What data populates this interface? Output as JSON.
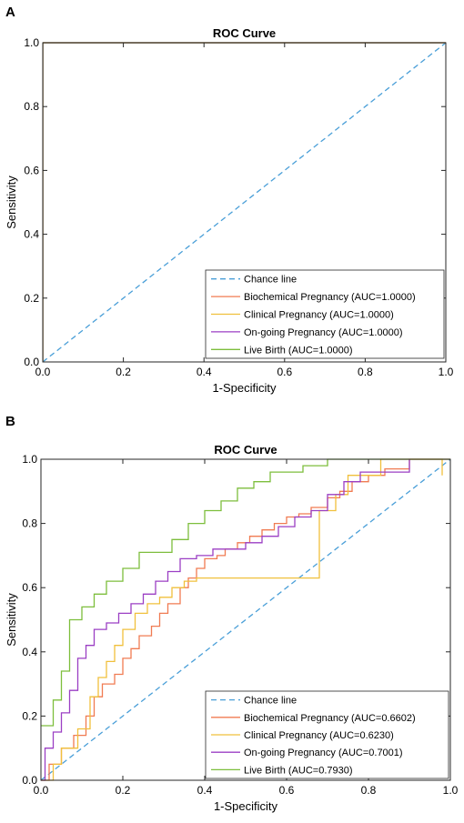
{
  "chart_data": [
    {
      "panel": "A",
      "type": "line",
      "title": "ROC Curve",
      "xlabel": "1-Specificity",
      "ylabel": "Sensitivity",
      "xlim": [
        0,
        1
      ],
      "ylim": [
        0,
        1
      ],
      "xticks": [
        "0.0",
        "0.2",
        "0.4",
        "0.6",
        "0.8",
        "1.0"
      ],
      "yticks": [
        "0.0",
        "0.2",
        "0.4",
        "0.6",
        "0.8",
        "1.0"
      ],
      "grid": false,
      "legend_position": "bottom-right",
      "series": [
        {
          "name": "Chance line",
          "color": "#4a9fd8",
          "dashed": true,
          "x": [
            0,
            1
          ],
          "y": [
            0,
            1
          ]
        },
        {
          "name": "Biochemical Pregnancy (AUC=1.0000)",
          "color": "#f07b52",
          "x": [
            0,
            0,
            1
          ],
          "y": [
            0,
            1,
            1
          ]
        },
        {
          "name": "Clinical Pregnancy (AUC=1.0000)",
          "color": "#f0c03c",
          "x": [
            0,
            0,
            1
          ],
          "y": [
            0,
            1,
            1
          ]
        },
        {
          "name": "On-going Pregnancy (AUC=1.0000)",
          "color": "#9b3fc4",
          "x": [
            0,
            0,
            1
          ],
          "y": [
            0,
            1,
            1
          ]
        },
        {
          "name": "Live Birth (AUC=1.0000)",
          "color": "#7dbe3c",
          "x": [
            0,
            0,
            1
          ],
          "y": [
            0,
            1,
            1
          ]
        }
      ]
    },
    {
      "panel": "B",
      "type": "line",
      "title": "ROC Curve",
      "xlabel": "1-Specificity",
      "ylabel": "Sensitivity",
      "xlim": [
        0,
        1
      ],
      "ylim": [
        0,
        1
      ],
      "xticks": [
        "0.0",
        "0.2",
        "0.4",
        "0.6",
        "0.8",
        "1.0"
      ],
      "yticks": [
        "0.0",
        "0.2",
        "0.4",
        "0.6",
        "0.8",
        "1.0"
      ],
      "grid": false,
      "legend_position": "bottom-right",
      "series": [
        {
          "name": "Chance line",
          "color": "#4a9fd8",
          "dashed": true,
          "x": [
            0,
            1
          ],
          "y": [
            0,
            1
          ]
        },
        {
          "name": "Biochemical Pregnancy (AUC=0.6602)",
          "color": "#f07b52",
          "x": [
            0,
            0.02,
            0.02,
            0.05,
            0.05,
            0.08,
            0.08,
            0.11,
            0.11,
            0.13,
            0.13,
            0.15,
            0.15,
            0.18,
            0.18,
            0.2,
            0.2,
            0.22,
            0.22,
            0.24,
            0.24,
            0.27,
            0.27,
            0.29,
            0.29,
            0.31,
            0.31,
            0.34,
            0.34,
            0.36,
            0.36,
            0.38,
            0.38,
            0.4,
            0.4,
            0.43,
            0.43,
            0.45,
            0.45,
            0.48,
            0.48,
            0.51,
            0.51,
            0.54,
            0.54,
            0.57,
            0.57,
            0.6,
            0.6,
            0.63,
            0.63,
            0.66,
            0.66,
            0.7,
            0.7,
            0.73,
            0.73,
            0.76,
            0.76,
            0.8,
            0.8,
            0.84,
            0.84,
            0.9,
            0.9,
            1.0
          ],
          "y": [
            0,
            0,
            0.05,
            0.05,
            0.1,
            0.1,
            0.14,
            0.14,
            0.2,
            0.2,
            0.26,
            0.26,
            0.3,
            0.3,
            0.33,
            0.33,
            0.38,
            0.38,
            0.41,
            0.41,
            0.45,
            0.45,
            0.48,
            0.48,
            0.52,
            0.52,
            0.55,
            0.55,
            0.6,
            0.6,
            0.63,
            0.63,
            0.66,
            0.66,
            0.69,
            0.69,
            0.7,
            0.7,
            0.72,
            0.72,
            0.74,
            0.74,
            0.76,
            0.76,
            0.78,
            0.78,
            0.8,
            0.8,
            0.82,
            0.82,
            0.83,
            0.83,
            0.85,
            0.85,
            0.88,
            0.88,
            0.9,
            0.9,
            0.93,
            0.93,
            0.95,
            0.95,
            0.97,
            0.97,
            1.0,
            1.0
          ]
        },
        {
          "name": "Clinical Pregnancy (AUC=0.6230)",
          "color": "#f0c03c",
          "x": [
            0,
            0.03,
            0.03,
            0.05,
            0.05,
            0.09,
            0.09,
            0.12,
            0.12,
            0.14,
            0.14,
            0.16,
            0.16,
            0.18,
            0.18,
            0.2,
            0.2,
            0.23,
            0.23,
            0.26,
            0.26,
            0.29,
            0.29,
            0.32,
            0.32,
            0.35,
            0.35,
            0.38,
            0.38,
            0.42,
            0.42,
            0.68,
            0.68,
            0.72,
            0.72,
            0.75,
            0.75,
            0.79,
            0.79,
            0.83,
            0.83,
            0.86,
            0.86,
            0.98,
            0.98
          ],
          "y": [
            0,
            0,
            0.05,
            0.05,
            0.1,
            0.1,
            0.16,
            0.16,
            0.26,
            0.26,
            0.32,
            0.32,
            0.37,
            0.37,
            0.42,
            0.42,
            0.47,
            0.47,
            0.52,
            0.52,
            0.55,
            0.55,
            0.57,
            0.57,
            0.6,
            0.6,
            0.62,
            0.62,
            0.63,
            0.63,
            0.63,
            0.63,
            0.84,
            0.84,
            0.89,
            0.89,
            0.95,
            0.95,
            0.95,
            0.95,
            1.0,
            1.0,
            1.0,
            1.0,
            0.95
          ]
        },
        {
          "name": "On-going Pregnancy (AUC=0.7001)",
          "color": "#9b3fc4",
          "x": [
            0,
            0.01,
            0.01,
            0.03,
            0.03,
            0.05,
            0.05,
            0.07,
            0.07,
            0.09,
            0.09,
            0.11,
            0.11,
            0.13,
            0.13,
            0.16,
            0.16,
            0.19,
            0.19,
            0.22,
            0.22,
            0.25,
            0.25,
            0.28,
            0.28,
            0.31,
            0.31,
            0.34,
            0.34,
            0.38,
            0.38,
            0.42,
            0.42,
            0.46,
            0.46,
            0.5,
            0.5,
            0.54,
            0.54,
            0.58,
            0.58,
            0.62,
            0.62,
            0.66,
            0.66,
            0.7,
            0.7,
            0.74,
            0.74,
            0.78,
            0.78,
            0.9,
            0.9
          ],
          "y": [
            0,
            0,
            0.1,
            0.1,
            0.15,
            0.15,
            0.21,
            0.21,
            0.28,
            0.28,
            0.38,
            0.38,
            0.42,
            0.42,
            0.47,
            0.47,
            0.49,
            0.49,
            0.52,
            0.52,
            0.55,
            0.55,
            0.58,
            0.58,
            0.62,
            0.62,
            0.65,
            0.65,
            0.69,
            0.69,
            0.7,
            0.7,
            0.72,
            0.72,
            0.72,
            0.72,
            0.74,
            0.74,
            0.76,
            0.76,
            0.79,
            0.79,
            0.82,
            0.82,
            0.84,
            0.84,
            0.89,
            0.89,
            0.93,
            0.93,
            0.96,
            0.96,
            1.0
          ]
        },
        {
          "name": "Live Birth (AUC=0.7930)",
          "color": "#7dbe3c",
          "x": [
            0,
            0.03,
            0.03,
            0.05,
            0.05,
            0.07,
            0.07,
            0.1,
            0.1,
            0.13,
            0.13,
            0.16,
            0.16,
            0.2,
            0.2,
            0.24,
            0.24,
            0.28,
            0.28,
            0.32,
            0.32,
            0.36,
            0.36,
            0.4,
            0.4,
            0.44,
            0.44,
            0.48,
            0.48,
            0.52,
            0.52,
            0.56,
            0.56,
            0.6,
            0.6,
            0.64,
            0.64,
            0.7,
            0.7,
            0.75,
            0.75,
            1.0
          ],
          "y": [
            0.17,
            0.17,
            0.25,
            0.25,
            0.34,
            0.34,
            0.5,
            0.5,
            0.54,
            0.54,
            0.58,
            0.58,
            0.62,
            0.62,
            0.66,
            0.66,
            0.71,
            0.71,
            0.71,
            0.71,
            0.75,
            0.75,
            0.8,
            0.8,
            0.84,
            0.84,
            0.87,
            0.87,
            0.91,
            0.91,
            0.93,
            0.93,
            0.96,
            0.96,
            0.96,
            0.96,
            0.98,
            0.98,
            1.0,
            1.0,
            1.0,
            1.0
          ]
        }
      ]
    }
  ]
}
